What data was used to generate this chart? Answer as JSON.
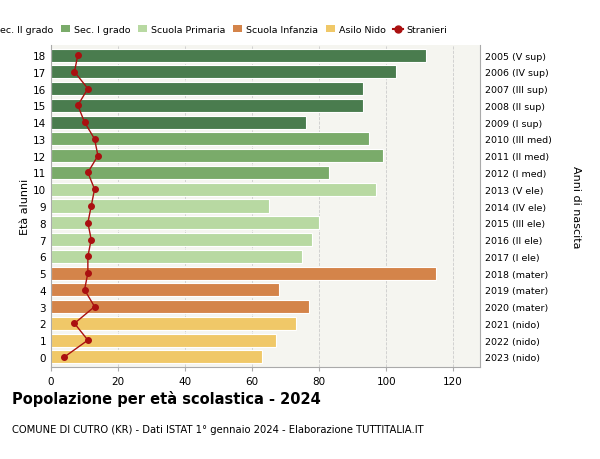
{
  "ages": [
    18,
    17,
    16,
    15,
    14,
    13,
    12,
    11,
    10,
    9,
    8,
    7,
    6,
    5,
    4,
    3,
    2,
    1,
    0
  ],
  "years": [
    "2005 (V sup)",
    "2006 (IV sup)",
    "2007 (III sup)",
    "2008 (II sup)",
    "2009 (I sup)",
    "2010 (III med)",
    "2011 (II med)",
    "2012 (I med)",
    "2013 (V ele)",
    "2014 (IV ele)",
    "2015 (III ele)",
    "2016 (II ele)",
    "2017 (I ele)",
    "2018 (mater)",
    "2019 (mater)",
    "2020 (mater)",
    "2021 (nido)",
    "2022 (nido)",
    "2023 (nido)"
  ],
  "bar_values": [
    112,
    103,
    93,
    93,
    76,
    95,
    99,
    83,
    97,
    65,
    80,
    78,
    75,
    115,
    68,
    77,
    73,
    67,
    63
  ],
  "bar_colors": [
    "#4a7c4e",
    "#4a7c4e",
    "#4a7c4e",
    "#4a7c4e",
    "#4a7c4e",
    "#7aab6a",
    "#7aab6a",
    "#7aab6a",
    "#b8d9a2",
    "#b8d9a2",
    "#b8d9a2",
    "#b8d9a2",
    "#b8d9a2",
    "#d4844a",
    "#d4844a",
    "#d4844a",
    "#f0c868",
    "#f0c868",
    "#f0c868"
  ],
  "stranieri_values": [
    8,
    7,
    11,
    8,
    10,
    13,
    14,
    11,
    13,
    12,
    11,
    12,
    11,
    11,
    10,
    13,
    7,
    11,
    4
  ],
  "stranieri_color": "#aa1010",
  "title": "Popolazione per età scolastica - 2024",
  "subtitle": "COMUNE DI CUTRO (KR) - Dati ISTAT 1° gennaio 2024 - Elaborazione TUTTITALIA.IT",
  "ylabel_left": "Età alunni",
  "ylabel_right": "Anni di nascita",
  "xlim_max": 128,
  "bg_color": "#f5f5f0",
  "fig_bg": "#ffffff",
  "grid_color": "#cccccc",
  "legend_labels": [
    "Sec. II grado",
    "Sec. I grado",
    "Scuola Primaria",
    "Scuola Infanzia",
    "Asilo Nido",
    "Stranieri"
  ],
  "legend_colors": [
    "#4a7c4e",
    "#7aab6a",
    "#b8d9a2",
    "#d4844a",
    "#f0c868",
    "#aa1010"
  ],
  "bar_height": 0.78,
  "x_ticks": [
    0,
    20,
    40,
    60,
    80,
    100,
    120
  ]
}
